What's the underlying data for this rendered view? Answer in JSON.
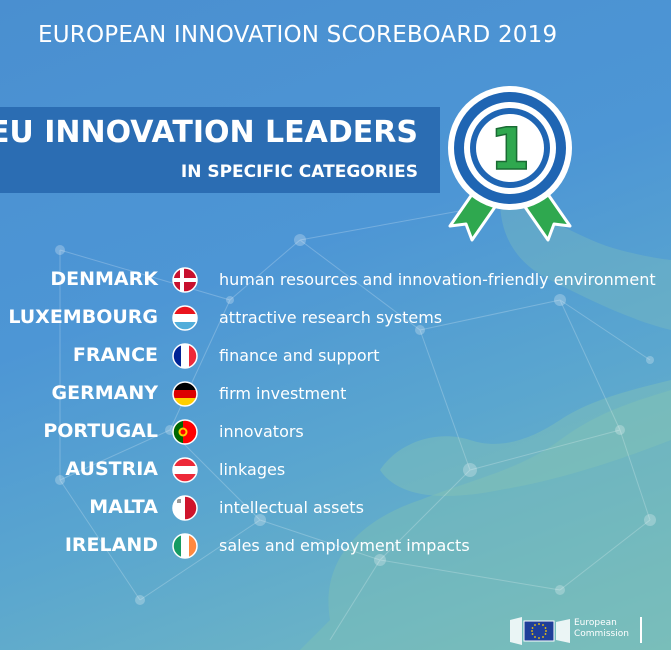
{
  "header": {
    "title": "EUROPEAN INNOVATION SCOREBOARD 2019"
  },
  "banner": {
    "title": "EU INNOVATION LEADERS",
    "subtitle": "IN SPECIFIC CATEGORIES"
  },
  "medal": {
    "number": "1",
    "icon": "rosette-medal-icon",
    "ring_color": "#1f65b3",
    "ribbon_color": "#2fa84f"
  },
  "leaders": [
    {
      "country": "DENMARK",
      "category": "human resources and innovation-friendly environment",
      "flag": "denmark-flag-icon"
    },
    {
      "country": "LUXEMBOURG",
      "category": "attractive research systems",
      "flag": "luxembourg-flag-icon"
    },
    {
      "country": "FRANCE",
      "category": "finance and support",
      "flag": "france-flag-icon"
    },
    {
      "country": "GERMANY",
      "category": "firm investment",
      "flag": "germany-flag-icon"
    },
    {
      "country": "PORTUGAL",
      "category": "innovators",
      "flag": "portugal-flag-icon"
    },
    {
      "country": "AUSTRIA",
      "category": "linkages",
      "flag": "austria-flag-icon"
    },
    {
      "country": "MALTA",
      "category": "intellectual assets",
      "flag": "malta-flag-icon"
    },
    {
      "country": "IRELAND",
      "category": "sales and employment impacts",
      "flag": "ireland-flag-icon"
    }
  ],
  "footer": {
    "org_line1": "European",
    "org_line2": "Commission",
    "icon": "ec-logo-icon"
  }
}
